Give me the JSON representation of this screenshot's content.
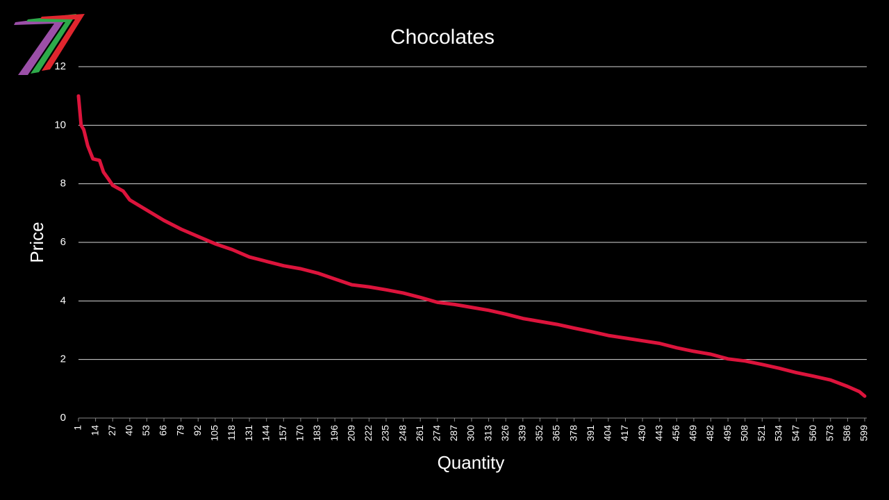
{
  "chart_data": {
    "type": "line",
    "title": "Chocolates",
    "x_label": "Quantity",
    "y_label": "Price",
    "x": [
      1,
      3,
      5,
      8,
      12,
      17,
      20,
      24,
      27,
      35,
      40,
      53,
      66,
      79,
      92,
      105,
      118,
      131,
      144,
      157,
      170,
      183,
      196,
      209,
      222,
      235,
      248,
      261,
      274,
      287,
      300,
      313,
      326,
      339,
      352,
      365,
      378,
      391,
      404,
      417,
      430,
      443,
      456,
      469,
      482,
      495,
      508,
      521,
      534,
      547,
      560,
      573,
      586,
      595,
      599
    ],
    "values": [
      11.0,
      10.0,
      9.85,
      9.3,
      8.85,
      8.8,
      8.4,
      8.15,
      7.95,
      7.75,
      7.45,
      7.1,
      6.75,
      6.45,
      6.2,
      5.95,
      5.75,
      5.5,
      5.35,
      5.2,
      5.1,
      4.95,
      4.75,
      4.55,
      4.48,
      4.38,
      4.27,
      4.12,
      3.95,
      3.88,
      3.78,
      3.68,
      3.55,
      3.4,
      3.3,
      3.2,
      3.07,
      2.95,
      2.82,
      2.73,
      2.64,
      2.55,
      2.4,
      2.28,
      2.18,
      2.02,
      1.95,
      1.83,
      1.7,
      1.55,
      1.43,
      1.3,
      1.08,
      0.9,
      0.75
    ],
    "color": "#dc143c",
    "xlim": [
      1,
      599
    ],
    "xticks": [
      1,
      14,
      27,
      40,
      53,
      66,
      79,
      92,
      105,
      118,
      131,
      144,
      157,
      170,
      183,
      196,
      209,
      222,
      235,
      248,
      261,
      274,
      287,
      300,
      313,
      326,
      339,
      352,
      365,
      378,
      391,
      404,
      417,
      430,
      443,
      456,
      469,
      482,
      495,
      508,
      521,
      534,
      547,
      560,
      573,
      586,
      599
    ],
    "ylim": [
      0,
      12
    ],
    "yticks": [
      0,
      2,
      4,
      6,
      8,
      10,
      12
    ],
    "grid": true
  }
}
